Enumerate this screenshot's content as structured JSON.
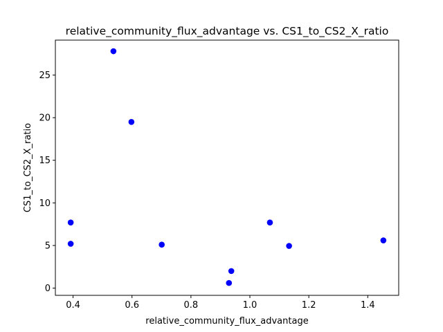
{
  "chart_data": {
    "type": "scatter",
    "title": "relative_community_flux_advantage vs. CS1_to_CS2_X_ratio",
    "xlabel": "relative_community_flux_advantage",
    "ylabel": "CS1_to_CS2_X_ratio",
    "xlim": [
      0.34,
      1.505
    ],
    "ylim": [
      -0.85,
      29.1
    ],
    "xticks": [
      0.4,
      0.6,
      0.8,
      1.0,
      1.2,
      1.4
    ],
    "xtick_labels": [
      "0.4",
      "0.6",
      "0.8",
      "1.0",
      "1.2",
      "1.4"
    ],
    "yticks": [
      0,
      5,
      10,
      15,
      20,
      25
    ],
    "ytick_labels": [
      "0",
      "5",
      "10",
      "15",
      "20",
      "25"
    ],
    "grid": false,
    "marker_color": "#0000ff",
    "points": [
      {
        "x": 0.392,
        "y": 7.7
      },
      {
        "x": 0.392,
        "y": 5.2
      },
      {
        "x": 0.537,
        "y": 27.8
      },
      {
        "x": 0.598,
        "y": 19.5
      },
      {
        "x": 0.701,
        "y": 5.1
      },
      {
        "x": 0.929,
        "y": 0.6
      },
      {
        "x": 0.937,
        "y": 2.0
      },
      {
        "x": 1.068,
        "y": 7.7
      },
      {
        "x": 1.133,
        "y": 4.95
      },
      {
        "x": 1.453,
        "y": 5.6
      }
    ]
  }
}
